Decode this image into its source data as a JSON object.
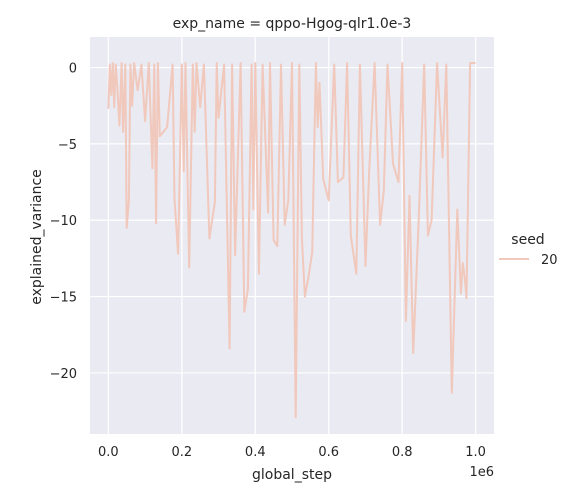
{
  "chart_data": {
    "type": "line",
    "title": "exp_name = qppo-Hgog-qlr1.0e-3",
    "xlabel": "global_step",
    "ylabel": "explained_variance",
    "x_offset_label": "1e6",
    "xlim": [
      -0.05,
      1.05
    ],
    "ylim": [
      -24,
      2
    ],
    "x_ticks": [
      0.0,
      0.2,
      0.4,
      0.6,
      0.8,
      1.0
    ],
    "x_tick_labels": [
      "0.0",
      "0.2",
      "0.4",
      "0.6",
      "0.8",
      "1.0"
    ],
    "y_ticks": [
      0,
      -5,
      -10,
      -15,
      -20
    ],
    "y_tick_labels": [
      "0",
      "−5",
      "−10",
      "−15",
      "−20"
    ],
    "grid": true,
    "legend": {
      "title": "seed",
      "placement": "right",
      "entries": [
        "20"
      ]
    },
    "series": [
      {
        "name": "20",
        "color": "#f1c8bc",
        "x": [
          0.0,
          0.004,
          0.008,
          0.012,
          0.016,
          0.02,
          0.024,
          0.03,
          0.036,
          0.04,
          0.046,
          0.05,
          0.056,
          0.06,
          0.065,
          0.07,
          0.08,
          0.09,
          0.1,
          0.11,
          0.12,
          0.125,
          0.13,
          0.135,
          0.14,
          0.16,
          0.175,
          0.18,
          0.19,
          0.2,
          0.205,
          0.21,
          0.22,
          0.23,
          0.235,
          0.24,
          0.25,
          0.26,
          0.275,
          0.29,
          0.295,
          0.3,
          0.315,
          0.33,
          0.337,
          0.345,
          0.36,
          0.37,
          0.38,
          0.39,
          0.395,
          0.4,
          0.41,
          0.42,
          0.435,
          0.44,
          0.45,
          0.46,
          0.47,
          0.48,
          0.49,
          0.5,
          0.51,
          0.52,
          0.527,
          0.535,
          0.545,
          0.555,
          0.565,
          0.57,
          0.575,
          0.585,
          0.6,
          0.615,
          0.625,
          0.64,
          0.65,
          0.66,
          0.675,
          0.685,
          0.7,
          0.71,
          0.725,
          0.74,
          0.75,
          0.76,
          0.775,
          0.79,
          0.8,
          0.81,
          0.82,
          0.83,
          0.845,
          0.86,
          0.87,
          0.88,
          0.895,
          0.91,
          0.92,
          0.935,
          0.95,
          0.96,
          0.965,
          0.97,
          0.975,
          0.985,
          0.99,
          1.0
        ],
        "y": [
          -2.7,
          0.2,
          -1.8,
          0.3,
          -2.6,
          0.2,
          -1.2,
          -3.8,
          0.3,
          -4.2,
          0.2,
          -10.5,
          -8.7,
          0.2,
          -2.5,
          0.3,
          -1.5,
          0.2,
          -3.5,
          0.3,
          -6.6,
          0.2,
          -10.2,
          0.3,
          -4.5,
          -3.9,
          0.2,
          -8.6,
          -12.2,
          0.2,
          -6.8,
          0.3,
          -13.1,
          0.2,
          -4.2,
          0.3,
          -2.6,
          0.2,
          -11.2,
          -8.8,
          0.3,
          -3.3,
          0.2,
          -18.4,
          0.2,
          -12.3,
          0.3,
          -16.0,
          -14.5,
          0.2,
          -9.3,
          0.3,
          -13.5,
          0.2,
          -9.5,
          0.3,
          -11.3,
          -11.7,
          0.2,
          -10.3,
          -8.7,
          0.3,
          -22.9,
          0.2,
          -11.2,
          -15.0,
          -13.7,
          -12.1,
          0.3,
          -3.9,
          -1.0,
          -7.3,
          -8.7,
          0.2,
          -7.5,
          -7.2,
          0.3,
          -11.0,
          -13.5,
          0.2,
          -13.0,
          -6.9,
          0.3,
          -10.3,
          -8.1,
          0.2,
          -6.3,
          -7.5,
          0.3,
          -16.6,
          -8.4,
          -18.7,
          -10.0,
          0.2,
          -11.0,
          -10.0,
          0.3,
          -5.9,
          0.2,
          -21.3,
          -9.3,
          -14.8,
          -12.8,
          -13.7,
          -15.1,
          0.3,
          0.3,
          0.3
        ]
      }
    ]
  }
}
